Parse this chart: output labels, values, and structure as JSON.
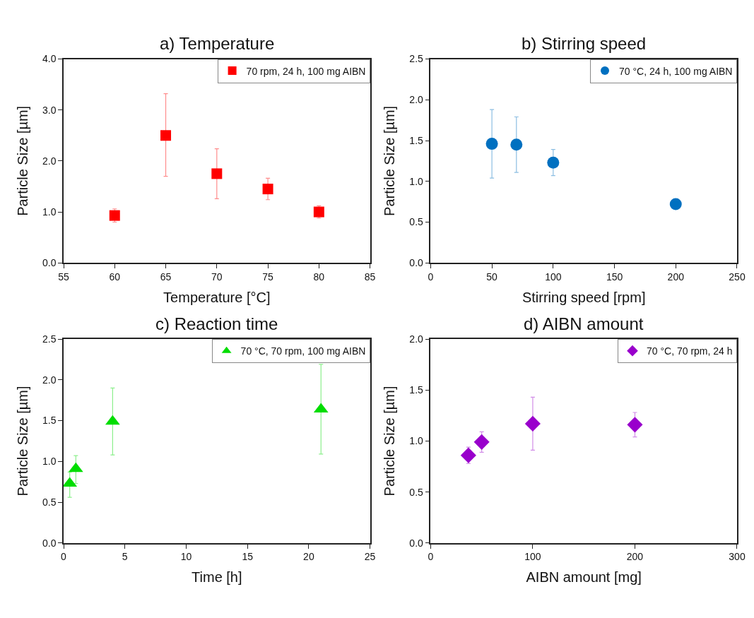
{
  "chart_data": [
    {
      "type": "scatter",
      "title": "a) Temperature",
      "xlabel": "Temperature [°C]",
      "ylabel": "Particle Size [µm]",
      "x": [
        60,
        65,
        70,
        75,
        80
      ],
      "xlim": [
        55,
        85
      ],
      "xticks": [
        55,
        60,
        65,
        70,
        75,
        80,
        85
      ],
      "ylim": [
        0,
        4
      ],
      "yticks": [
        {
          "value": 0,
          "label": "0.0"
        },
        {
          "value": 1,
          "label": "1.0"
        },
        {
          "value": 2,
          "label": "2.0"
        },
        {
          "value": 3,
          "label": "3.0"
        },
        {
          "value": 4,
          "label": "4.0"
        }
      ],
      "marker": "square",
      "legend": "top right",
      "series": [
        {
          "name": "70 rpm, 24 h, 100 mg AIBN",
          "color": "#ff0000",
          "values": [
            0.93,
            2.5,
            1.75,
            1.45,
            1.0
          ],
          "errors": [
            [
              0.8,
              1.06
            ],
            [
              1.7,
              3.32
            ],
            [
              1.26,
              2.24
            ],
            [
              1.24,
              1.66
            ],
            [
              0.88,
              1.12
            ]
          ]
        }
      ]
    },
    {
      "type": "scatter",
      "title": "b) Stirring speed",
      "xlabel": "Stirring speed [rpm]",
      "ylabel": "Particle Size [µm]",
      "x": [
        50,
        70,
        100,
        200
      ],
      "xlim": [
        0,
        250
      ],
      "xticks": [
        0,
        50,
        100,
        150,
        200,
        250
      ],
      "ylim": [
        0,
        2.5
      ],
      "yticks": [
        {
          "value": 0,
          "label": "0.0"
        },
        0.5,
        {
          "value": 1,
          "label": "1.0"
        },
        1.5,
        {
          "value": 2,
          "label": "2.0"
        },
        2.5
      ],
      "marker": "circle",
      "legend": "top right",
      "series": [
        {
          "name": "70 °C, 24 h, 100 mg AIBN",
          "color": "#0070c0",
          "values": [
            1.46,
            1.45,
            1.23,
            0.72
          ],
          "errors": [
            [
              1.04,
              1.88
            ],
            [
              1.11,
              1.79
            ],
            [
              1.07,
              1.39
            ],
            null
          ]
        }
      ]
    },
    {
      "type": "scatter",
      "title": "c) Reaction time",
      "xlabel": "Time [h]",
      "ylabel": "Particle Size [µm]",
      "x": [
        0.5,
        1,
        4,
        21
      ],
      "xlim": [
        0,
        25
      ],
      "xticks": [
        0,
        5,
        10,
        15,
        20,
        25
      ],
      "ylim": [
        0,
        2.5
      ],
      "yticks": [
        {
          "value": 0,
          "label": "0.0"
        },
        0.5,
        {
          "value": 1,
          "label": "1.0"
        },
        1.5,
        {
          "value": 2,
          "label": "2.0"
        },
        2.5
      ],
      "marker": "triangle",
      "legend": "top right",
      "series": [
        {
          "name": "70 °C, 70 rpm, 100 mg AIBN",
          "color": "#00dd00",
          "values": [
            0.73,
            0.91,
            1.49,
            1.64
          ],
          "errors": [
            [
              0.56,
              0.87
            ],
            [
              0.73,
              1.07
            ],
            [
              1.08,
              1.9
            ],
            [
              1.09,
              2.19
            ]
          ]
        }
      ]
    },
    {
      "type": "scatter",
      "title": "d) AIBN amount",
      "xlabel": "AIBN amount [mg]",
      "ylabel": "Particle Size [µm]",
      "x": [
        37,
        50,
        100,
        200
      ],
      "xlim": [
        0,
        300
      ],
      "xticks": [
        0,
        100,
        200,
        300
      ],
      "ylim": [
        0,
        2
      ],
      "yticks": [
        {
          "value": 0,
          "label": "0.0"
        },
        0.5,
        {
          "value": 1,
          "label": "1.0"
        },
        1.5,
        {
          "value": 2,
          "label": "2.0"
        }
      ],
      "marker": "diamond",
      "legend": "top right",
      "series": [
        {
          "name": "70 °C, 70 rpm, 24 h",
          "color": "#9900cc",
          "values": [
            0.86,
            0.99,
            1.17,
            1.16
          ],
          "errors": [
            [
              0.78,
              0.94
            ],
            [
              0.89,
              1.09
            ],
            [
              0.91,
              1.43
            ],
            [
              1.04,
              1.28
            ]
          ]
        }
      ]
    }
  ]
}
